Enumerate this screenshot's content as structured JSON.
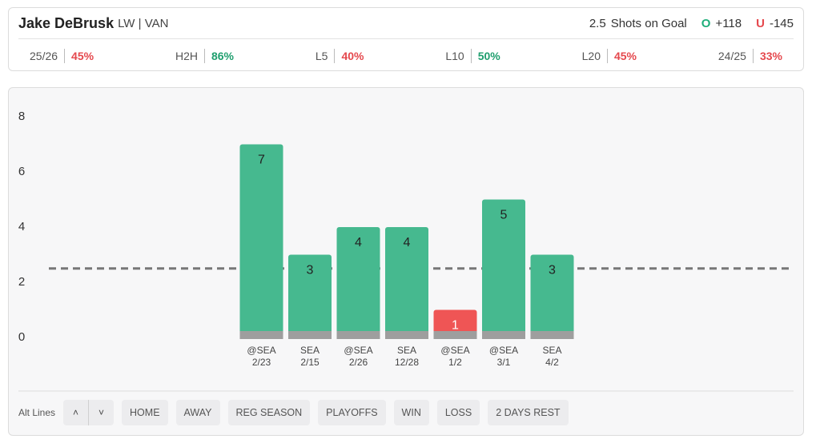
{
  "header": {
    "name": "Jake DeBrusk",
    "position": "LW | VAN",
    "market": "Shots on Goal",
    "over_label": "O",
    "over_odds": "+118",
    "under_label": "U",
    "under_odds": "-145",
    "stats": [
      {
        "label": "25/26",
        "value": "45%",
        "color": "#e5484d"
      },
      {
        "label": "H2H",
        "value": "86%",
        "color": "#1f9e6e"
      },
      {
        "label": "L5",
        "value": "40%",
        "color": "#e5484d"
      },
      {
        "label": "L10",
        "value": "50%",
        "color": "#1f9e6e"
      },
      {
        "label": "L20",
        "value": "45%",
        "color": "#e5484d"
      },
      {
        "label": "24/25",
        "value": "33%",
        "color": "#e5484d"
      }
    ]
  },
  "chart_data": {
    "type": "bar",
    "line": 2.5,
    "categories": [
      "@SEA",
      "SEA",
      "@SEA",
      "SEA",
      "@SEA",
      "@SEA",
      "SEA"
    ],
    "dates": [
      "2/23",
      "2/15",
      "2/26",
      "12/28",
      "1/2",
      "3/1",
      "4/2"
    ],
    "values": [
      7,
      3,
      4,
      4,
      1,
      5,
      3
    ],
    "colors": [
      "#46b98f",
      "#46b98f",
      "#46b98f",
      "#46b98f",
      "#ef5555",
      "#46b98f",
      "#46b98f"
    ],
    "ylim": [
      0,
      8
    ],
    "yticks": [
      0,
      2,
      4,
      6,
      8
    ]
  },
  "controls": {
    "alt_lines": "Alt Lines",
    "up": "˄",
    "down": "˅",
    "filters": [
      "HOME",
      "AWAY",
      "REG SEASON",
      "PLAYOFFS",
      "WIN",
      "LOSS",
      "2 DAYS REST"
    ]
  }
}
